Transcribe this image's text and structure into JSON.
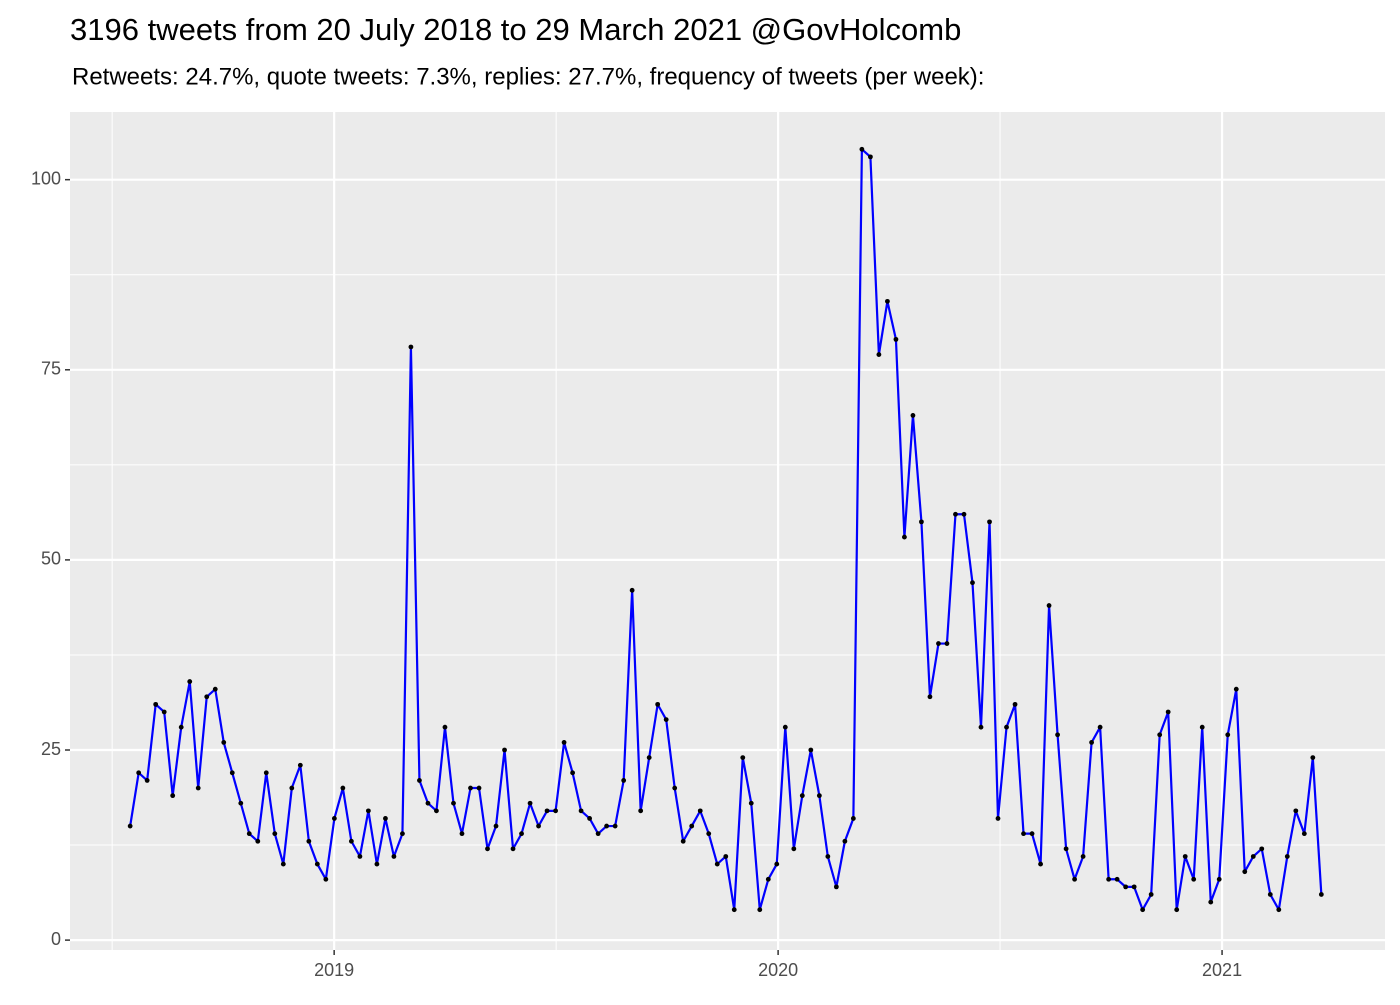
{
  "chart_data": {
    "type": "line",
    "title": "3196 tweets from 20 July 2018 to 29 March 2021 @GovHolcomb",
    "subtitle": "Retweets: 24.7%, quote tweets: 7.3%, replies: 27.7%, frequency of tweets (per week):",
    "x": [
      2018.5405,
      2018.5597,
      2018.5788,
      2018.598,
      2018.6172,
      2018.6363,
      2018.6555,
      2018.6747,
      2018.6938,
      2018.713,
      2018.7322,
      2018.7513,
      2018.7705,
      2018.7897,
      2018.8088,
      2018.828,
      2018.8471,
      2018.8663,
      2018.8855,
      2018.9046,
      2018.9238,
      2018.943,
      2018.9621,
      2018.9813,
      2019.0005,
      2019.0196,
      2019.0388,
      2019.058,
      2019.0771,
      2019.0963,
      2019.1155,
      2019.1346,
      2019.1538,
      2019.1729,
      2019.1921,
      2019.2113,
      2019.2304,
      2019.2496,
      2019.2688,
      2019.2879,
      2019.3071,
      2019.3263,
      2019.3454,
      2019.3646,
      2019.3838,
      2019.4029,
      2019.4221,
      2019.4413,
      2019.4604,
      2019.4796,
      2019.4988,
      2019.5179,
      2019.5371,
      2019.5562,
      2019.5754,
      2019.5946,
      2019.6137,
      2019.6329,
      2019.6521,
      2019.6712,
      2019.6904,
      2019.7096,
      2019.7287,
      2019.7479,
      2019.7671,
      2019.7862,
      2019.8054,
      2019.8246,
      2019.8437,
      2019.8629,
      2019.8821,
      2019.9012,
      2019.9204,
      2019.9395,
      2019.9587,
      2019.9779,
      2019.997,
      2020.0162,
      2020.0354,
      2020.0545,
      2020.0737,
      2020.0929,
      2020.112,
      2020.1312,
      2020.1504,
      2020.1695,
      2020.1887,
      2020.2079,
      2020.227,
      2020.2462,
      2020.2654,
      2020.2845,
      2020.3037,
      2020.3228,
      2020.342,
      2020.3612,
      2020.3803,
      2020.3995,
      2020.4187,
      2020.4378,
      2020.457,
      2020.4762,
      2020.4953,
      2020.5145,
      2020.5337,
      2020.5528,
      2020.572,
      2020.5912,
      2020.6103,
      2020.6295,
      2020.6487,
      2020.6678,
      2020.687,
      2020.7061,
      2020.7253,
      2020.7445,
      2020.7636,
      2020.7828,
      2020.802,
      2020.8211,
      2020.8403,
      2020.8595,
      2020.8786,
      2020.8978,
      2020.917,
      2020.9361,
      2020.9553,
      2020.9745,
      2020.9936,
      2021.0128,
      2021.032,
      2021.0511,
      2021.0703,
      2021.0894,
      2021.1086,
      2021.1278,
      2021.1469,
      2021.1661,
      2021.1853,
      2021.2044,
      2021.2236
    ],
    "values": [
      15,
      22,
      21,
      31,
      30,
      19,
      28,
      34,
      20,
      32,
      33,
      26,
      22,
      18,
      14,
      13,
      22,
      14,
      10,
      20,
      23,
      13,
      10,
      8,
      16,
      20,
      13,
      11,
      17,
      10,
      16,
      11,
      14,
      78,
      21,
      18,
      17,
      28,
      18,
      14,
      20,
      20,
      12,
      15,
      25,
      12,
      14,
      18,
      15,
      17,
      17,
      26,
      22,
      17,
      16,
      14,
      15,
      15,
      21,
      46,
      17,
      24,
      31,
      29,
      20,
      13,
      15,
      17,
      14,
      10,
      11,
      4,
      24,
      18,
      4,
      8,
      10,
      28,
      12,
      19,
      25,
      19,
      11,
      7,
      13,
      16,
      104,
      103,
      77,
      84,
      79,
      53,
      69,
      55,
      32,
      39,
      39,
      56,
      56,
      47,
      28,
      55,
      16,
      28,
      31,
      14,
      14,
      10,
      44,
      27,
      12,
      8,
      11,
      26,
      28,
      8,
      8,
      7,
      7,
      4,
      6,
      27,
      30,
      4,
      11,
      8,
      28,
      5,
      8,
      27,
      33,
      9,
      11,
      12,
      6,
      4,
      11,
      17,
      14,
      24,
      6
    ],
    "color": "#0000ff",
    "point_color": "#000000",
    "xlim": [
      2018.405,
      2021.367
    ],
    "xticks": [
      2019,
      2020,
      2021
    ],
    "x_minor_ticks": [
      2018.5,
      2019.5,
      2020.5
    ],
    "ylim": [
      -1.3,
      108.9
    ],
    "yticks": [
      0,
      25,
      50,
      75,
      100
    ],
    "y_minor_ticks": [
      12.5,
      37.5,
      62.5,
      87.5
    ],
    "grid": true
  }
}
